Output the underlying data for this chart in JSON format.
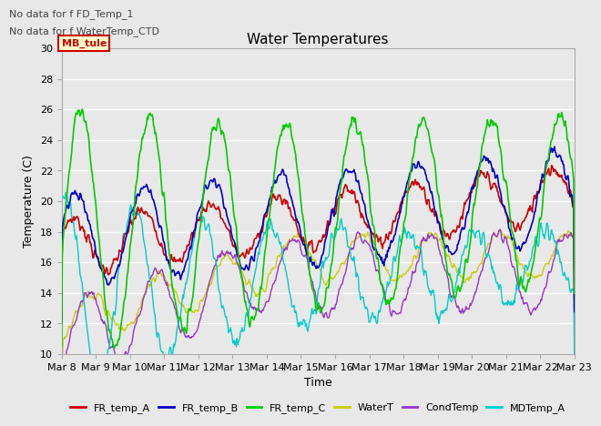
{
  "title": "Water Temperatures",
  "xlabel": "Time",
  "ylabel": "Temperature (C)",
  "ylim": [
    10,
    30
  ],
  "annotations": [
    "No data for f FD_Temp_1",
    "No data for f WaterTemp_CTD"
  ],
  "mb_tule_label": "MB_tule",
  "x_tick_labels": [
    "Mar 8",
    "Mar 9",
    "Mar 10",
    "Mar 11",
    "Mar 12",
    "Mar 13",
    "Mar 14",
    "Mar 15",
    "Mar 16",
    "Mar 17",
    "Mar 18",
    "Mar 19",
    "Mar 20",
    "Mar 21",
    "Mar 22",
    "Mar 23"
  ],
  "legend_entries": [
    {
      "label": "FR_temp_A",
      "color": "#cc0000"
    },
    {
      "label": "FR_temp_B",
      "color": "#0000cc"
    },
    {
      "label": "FR_temp_C",
      "color": "#00cc00"
    },
    {
      "label": "WaterT",
      "color": "#cccc00"
    },
    {
      "label": "CondTemp",
      "color": "#9933cc"
    },
    {
      "label": "MDTemp_A",
      "color": "#00cccc"
    }
  ],
  "background_color": "#e8e8e8",
  "grid_color": "#ffffff",
  "yticks": [
    10,
    12,
    14,
    16,
    18,
    20,
    22,
    24,
    26,
    28,
    30
  ]
}
